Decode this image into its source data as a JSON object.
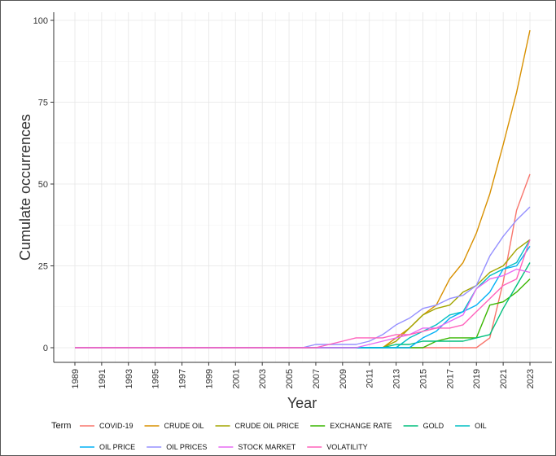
{
  "chart_data": {
    "type": "line",
    "xlabel": "Year",
    "ylabel": "Cumulate occurrences",
    "xlim": [
      1989,
      2023
    ],
    "ylim": [
      0,
      100
    ],
    "x_ticks": [
      "1989",
      "1991",
      "1993",
      "1995",
      "1997",
      "1999",
      "2001",
      "2003",
      "2005",
      "2007",
      "2009",
      "2011",
      "2013",
      "2015",
      "2017",
      "2019",
      "2021",
      "2023"
    ],
    "y_ticks": [
      "0",
      "25",
      "50",
      "75",
      "100"
    ],
    "grid": true,
    "legend_title": "Term",
    "legend_position": "bottom",
    "series": [
      {
        "name": "COVID-19",
        "color": "#F8766D",
        "points": [
          [
            1989,
            0
          ],
          [
            2019,
            0
          ],
          [
            2020,
            3
          ],
          [
            2021,
            20
          ],
          [
            2022,
            42
          ],
          [
            2023,
            53
          ]
        ]
      },
      {
        "name": "CRUDE OIL",
        "color": "#D89000",
        "points": [
          [
            1989,
            0
          ],
          [
            2012,
            0
          ],
          [
            2013,
            3
          ],
          [
            2014,
            6
          ],
          [
            2015,
            10
          ],
          [
            2016,
            13
          ],
          [
            2017,
            21
          ],
          [
            2018,
            26
          ],
          [
            2019,
            35
          ],
          [
            2020,
            47
          ],
          [
            2021,
            62
          ],
          [
            2022,
            78
          ],
          [
            2023,
            97
          ]
        ]
      },
      {
        "name": "CRUDE OIL PRICE",
        "color": "#A3A500",
        "points": [
          [
            1989,
            0
          ],
          [
            2012,
            0
          ],
          [
            2013,
            2
          ],
          [
            2014,
            6
          ],
          [
            2015,
            10
          ],
          [
            2016,
            12
          ],
          [
            2017,
            13
          ],
          [
            2018,
            17
          ],
          [
            2019,
            19
          ],
          [
            2020,
            23
          ],
          [
            2021,
            25
          ],
          [
            2022,
            30
          ],
          [
            2023,
            33
          ]
        ]
      },
      {
        "name": "EXCHANGE RATE",
        "color": "#39B600",
        "points": [
          [
            1989,
            0
          ],
          [
            2015,
            0
          ],
          [
            2016,
            2
          ],
          [
            2017,
            3
          ],
          [
            2018,
            3
          ],
          [
            2019,
            3
          ],
          [
            2020,
            13
          ],
          [
            2021,
            14
          ],
          [
            2022,
            17
          ],
          [
            2023,
            21
          ]
        ]
      },
      {
        "name": "GOLD",
        "color": "#00BF7D",
        "points": [
          [
            1989,
            0
          ],
          [
            2012,
            0
          ],
          [
            2013,
            1
          ],
          [
            2014,
            1
          ],
          [
            2015,
            2
          ],
          [
            2016,
            2
          ],
          [
            2017,
            2
          ],
          [
            2018,
            2
          ],
          [
            2019,
            3
          ],
          [
            2020,
            4
          ],
          [
            2021,
            12
          ],
          [
            2022,
            19
          ],
          [
            2023,
            26
          ]
        ]
      },
      {
        "name": "OIL",
        "color": "#00BFC4",
        "points": [
          [
            1989,
            0
          ],
          [
            2013,
            0
          ],
          [
            2014,
            3
          ],
          [
            2015,
            5
          ],
          [
            2016,
            7
          ],
          [
            2017,
            10
          ],
          [
            2018,
            11
          ],
          [
            2019,
            18
          ],
          [
            2020,
            22
          ],
          [
            2021,
            24
          ],
          [
            2022,
            26
          ],
          [
            2023,
            33
          ]
        ]
      },
      {
        "name": "OIL PRICE",
        "color": "#00B0F6",
        "points": [
          [
            1989,
            0
          ],
          [
            2014,
            0
          ],
          [
            2015,
            3
          ],
          [
            2016,
            5
          ],
          [
            2017,
            9
          ],
          [
            2018,
            11
          ],
          [
            2019,
            13
          ],
          [
            2020,
            17
          ],
          [
            2021,
            24
          ],
          [
            2022,
            25
          ],
          [
            2023,
            31
          ]
        ]
      },
      {
        "name": "OIL PRICES",
        "color": "#9590FF",
        "points": [
          [
            1989,
            0
          ],
          [
            2006,
            0
          ],
          [
            2007,
            1
          ],
          [
            2010,
            1
          ],
          [
            2011,
            2
          ],
          [
            2012,
            4
          ],
          [
            2013,
            7
          ],
          [
            2014,
            9
          ],
          [
            2015,
            12
          ],
          [
            2016,
            13
          ],
          [
            2017,
            15
          ],
          [
            2018,
            16
          ],
          [
            2019,
            19
          ],
          [
            2020,
            28
          ],
          [
            2021,
            34
          ],
          [
            2022,
            39
          ],
          [
            2023,
            43
          ]
        ]
      },
      {
        "name": "STOCK MARKET",
        "color": "#E76BF3",
        "points": [
          [
            1989,
            0
          ],
          [
            2010,
            0
          ],
          [
            2011,
            1
          ],
          [
            2012,
            2
          ],
          [
            2013,
            3
          ],
          [
            2014,
            4
          ],
          [
            2015,
            6
          ],
          [
            2016,
            6
          ],
          [
            2017,
            8
          ],
          [
            2018,
            10
          ],
          [
            2019,
            18
          ],
          [
            2020,
            21
          ],
          [
            2021,
            22
          ],
          [
            2022,
            24
          ],
          [
            2023,
            23
          ]
        ]
      },
      {
        "name": "VOLATILITY",
        "color": "#FF62BC",
        "points": [
          [
            1989,
            0
          ],
          [
            2007,
            0
          ],
          [
            2008,
            1
          ],
          [
            2009,
            2
          ],
          [
            2010,
            3
          ],
          [
            2011,
            3
          ],
          [
            2012,
            3
          ],
          [
            2013,
            4
          ],
          [
            2014,
            4
          ],
          [
            2015,
            5
          ],
          [
            2016,
            6
          ],
          [
            2017,
            6
          ],
          [
            2018,
            7
          ],
          [
            2019,
            11
          ],
          [
            2020,
            15
          ],
          [
            2021,
            19
          ],
          [
            2022,
            21
          ],
          [
            2023,
            33
          ]
        ]
      }
    ]
  }
}
